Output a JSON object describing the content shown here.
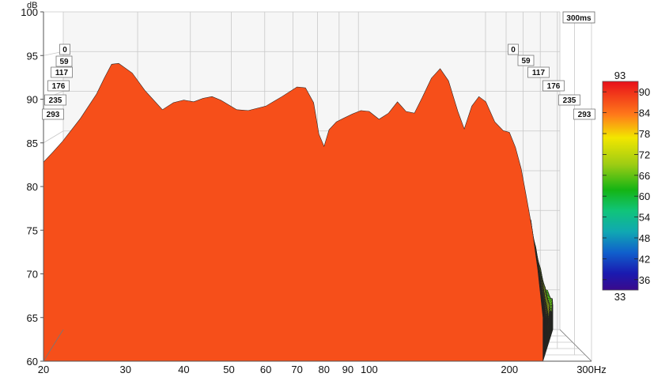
{
  "chart_data": {
    "type": "waterfall",
    "y_unit": "dB",
    "x_unit": "Hz",
    "ylim": [
      60,
      100
    ],
    "y_ticks": [
      "100",
      "95",
      "90",
      "85",
      "80",
      "75",
      "70",
      "65",
      "60"
    ],
    "xlim": [
      20,
      300
    ],
    "x_scale": "log",
    "x_ticks": [
      {
        "value": 20,
        "label": "20"
      },
      {
        "value": 30,
        "label": "30"
      },
      {
        "value": 40,
        "label": "40"
      },
      {
        "value": 50,
        "label": "50"
      },
      {
        "value": 60,
        "label": "60"
      },
      {
        "value": 70,
        "label": "70"
      },
      {
        "value": 80,
        "label": "80"
      },
      {
        "value": 90,
        "label": "90"
      },
      {
        "value": 100,
        "label": "100"
      },
      {
        "value": 200,
        "label": "200"
      },
      {
        "value": 300,
        "label": "300Hz"
      }
    ],
    "time_range_label": "300ms",
    "time_ticks": [
      "0",
      "59",
      "117",
      "176",
      "235",
      "293"
    ],
    "colorbar": {
      "min": 33,
      "max": 93,
      "min_label": "33",
      "max_label": "93",
      "ticks": [
        "90",
        "84",
        "78",
        "72",
        "66",
        "60",
        "54",
        "48",
        "42",
        "36"
      ]
    },
    "front_response": {
      "freq": [
        20,
        21,
        22,
        24,
        26,
        27,
        28,
        29,
        31,
        33,
        36,
        38,
        40,
        42,
        44,
        46,
        48,
        52,
        55,
        60,
        65,
        70,
        73,
        76,
        78,
        80,
        82,
        85,
        88,
        92,
        96,
        100,
        105,
        110,
        115,
        120,
        125,
        130,
        136,
        142,
        148,
        155,
        160,
        166,
        172,
        178,
        186,
        194,
        200,
        206,
        212,
        218,
        224,
        230,
        236
      ],
      "db": [
        82.8,
        84,
        85.2,
        87.8,
        90.6,
        92.4,
        94,
        94.1,
        93,
        91,
        88.8,
        89.6,
        89.9,
        89.7,
        90.1,
        90.3,
        89.9,
        88.8,
        88.7,
        89.2,
        90.3,
        91.4,
        91.3,
        89.6,
        86,
        84.6,
        86.5,
        87.4,
        87.8,
        88.3,
        88.7,
        88.6,
        87.7,
        88.4,
        89.7,
        88.6,
        88.4,
        90.2,
        92.4,
        93.5,
        92.1,
        88.6,
        86.6,
        89.2,
        90.3,
        89.7,
        87.4,
        86.4,
        86.2,
        84.5,
        82,
        78.5,
        75,
        70.5,
        65
      ]
    },
    "decay": {
      "slices": 70,
      "floor_db": 62.5,
      "depth_shift_log": 0.06,
      "depth_rise_db": 1.5
    }
  }
}
